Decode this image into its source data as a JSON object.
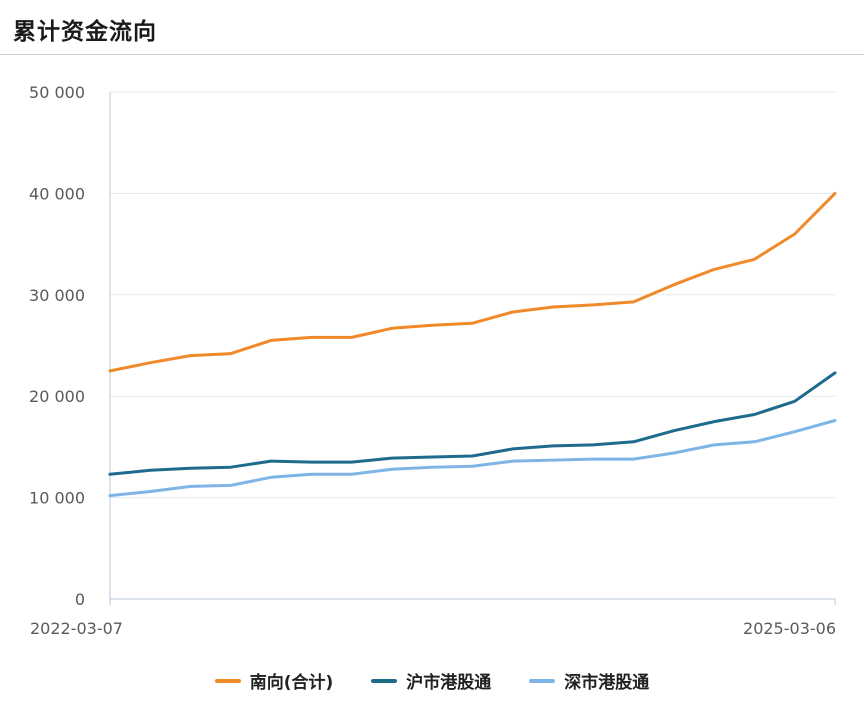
{
  "header": {
    "title": "累计资金流向"
  },
  "chart_data": {
    "type": "line",
    "title": "累计资金流向",
    "xlabel": "",
    "ylabel": "",
    "x_tick_labels": [
      "2022-03-07",
      "2025-03-06"
    ],
    "y_ticks": [
      0,
      10000,
      20000,
      30000,
      40000,
      50000
    ],
    "y_tick_labels": [
      "0",
      "10 000",
      "20 000",
      "30 000",
      "40 000",
      "50 000"
    ],
    "ylim": [
      0,
      50000
    ],
    "grid": "horizontal",
    "legend_position": "bottom",
    "x": [
      "2022-03",
      "2022-05",
      "2022-07",
      "2022-09",
      "2022-11",
      "2023-01",
      "2023-03",
      "2023-05",
      "2023-07",
      "2023-09",
      "2023-11",
      "2024-01",
      "2024-03",
      "2024-05",
      "2024-07",
      "2024-09",
      "2024-11",
      "2025-01",
      "2025-03"
    ],
    "series": [
      {
        "name": "南向(合计)",
        "color": "#f0892a",
        "values": [
          22500,
          23300,
          24000,
          24200,
          25500,
          25800,
          25800,
          26700,
          27000,
          27200,
          28300,
          28800,
          29000,
          29300,
          31000,
          32500,
          33500,
          36000,
          40000
        ]
      },
      {
        "name": "沪市港股通",
        "color": "#1f6b8e",
        "values": [
          12300,
          12700,
          12900,
          13000,
          13600,
          13500,
          13500,
          13900,
          14000,
          14100,
          14800,
          15100,
          15200,
          15500,
          16600,
          17500,
          18200,
          19500,
          22300
        ]
      },
      {
        "name": "深市港股通",
        "color": "#7eb4e6",
        "values": [
          10200,
          10600,
          11100,
          11200,
          12000,
          12300,
          12300,
          12800,
          13000,
          13100,
          13600,
          13700,
          13800,
          13800,
          14400,
          15200,
          15500,
          16500,
          17600
        ]
      }
    ]
  }
}
